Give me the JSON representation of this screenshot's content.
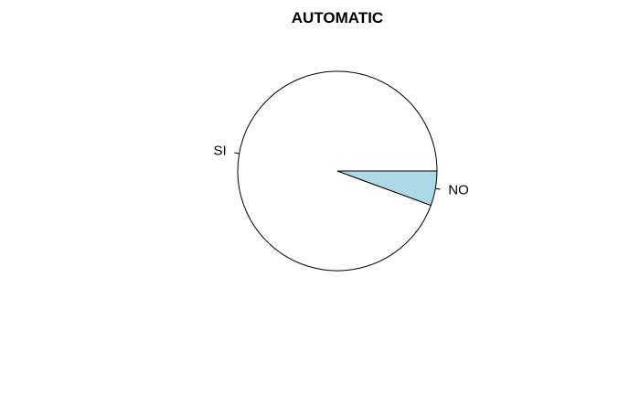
{
  "chart_data": {
    "type": "pie",
    "title": "AUTOMATIC",
    "slices": [
      {
        "label": "SI",
        "value": 0.944,
        "color": "#ffffff"
      },
      {
        "label": "NO",
        "value": 0.056,
        "color": "#add8e6"
      }
    ],
    "start_angle_deg": 0,
    "direction": "counterclockwise",
    "border_color": "#000000"
  }
}
